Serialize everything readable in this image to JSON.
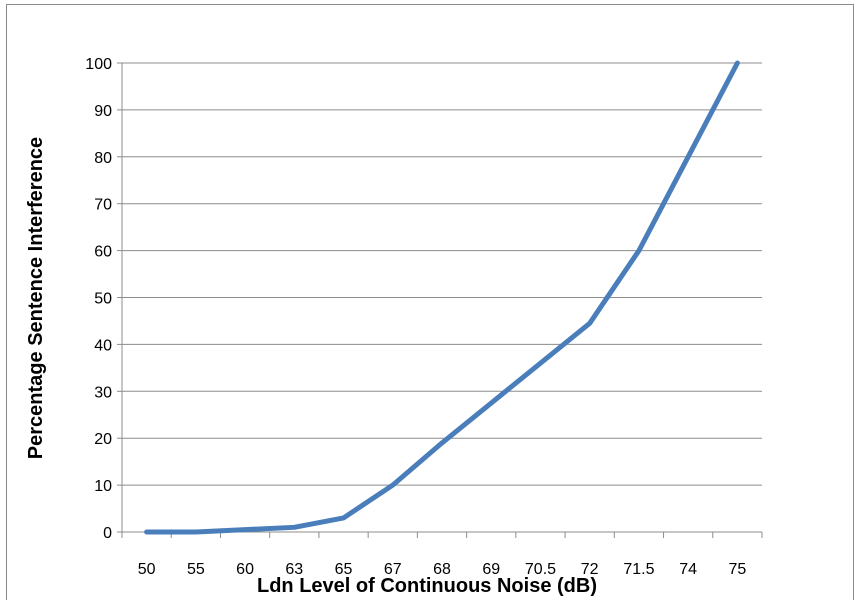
{
  "chart_data": {
    "type": "line",
    "title": "",
    "xlabel": "Ldn Level of Continuous Noise (dB)",
    "ylabel": "Percentage Sentence Interference",
    "categories": [
      "50",
      "55",
      "60",
      "63",
      "65",
      "67",
      "68",
      "69",
      "70.5",
      "72",
      "71.5",
      "74",
      "75"
    ],
    "series": [
      {
        "values": [
          0,
          0,
          0.5,
          1,
          3,
          10,
          19,
          27.5,
          36,
          44.5,
          60,
          80,
          100
        ],
        "color": "#4a7ebb"
      }
    ],
    "ylim": [
      0,
      100
    ],
    "yticks": [
      0,
      10,
      20,
      30,
      40,
      50,
      60,
      70,
      80,
      90,
      100
    ],
    "grid": true,
    "legend": "none"
  }
}
